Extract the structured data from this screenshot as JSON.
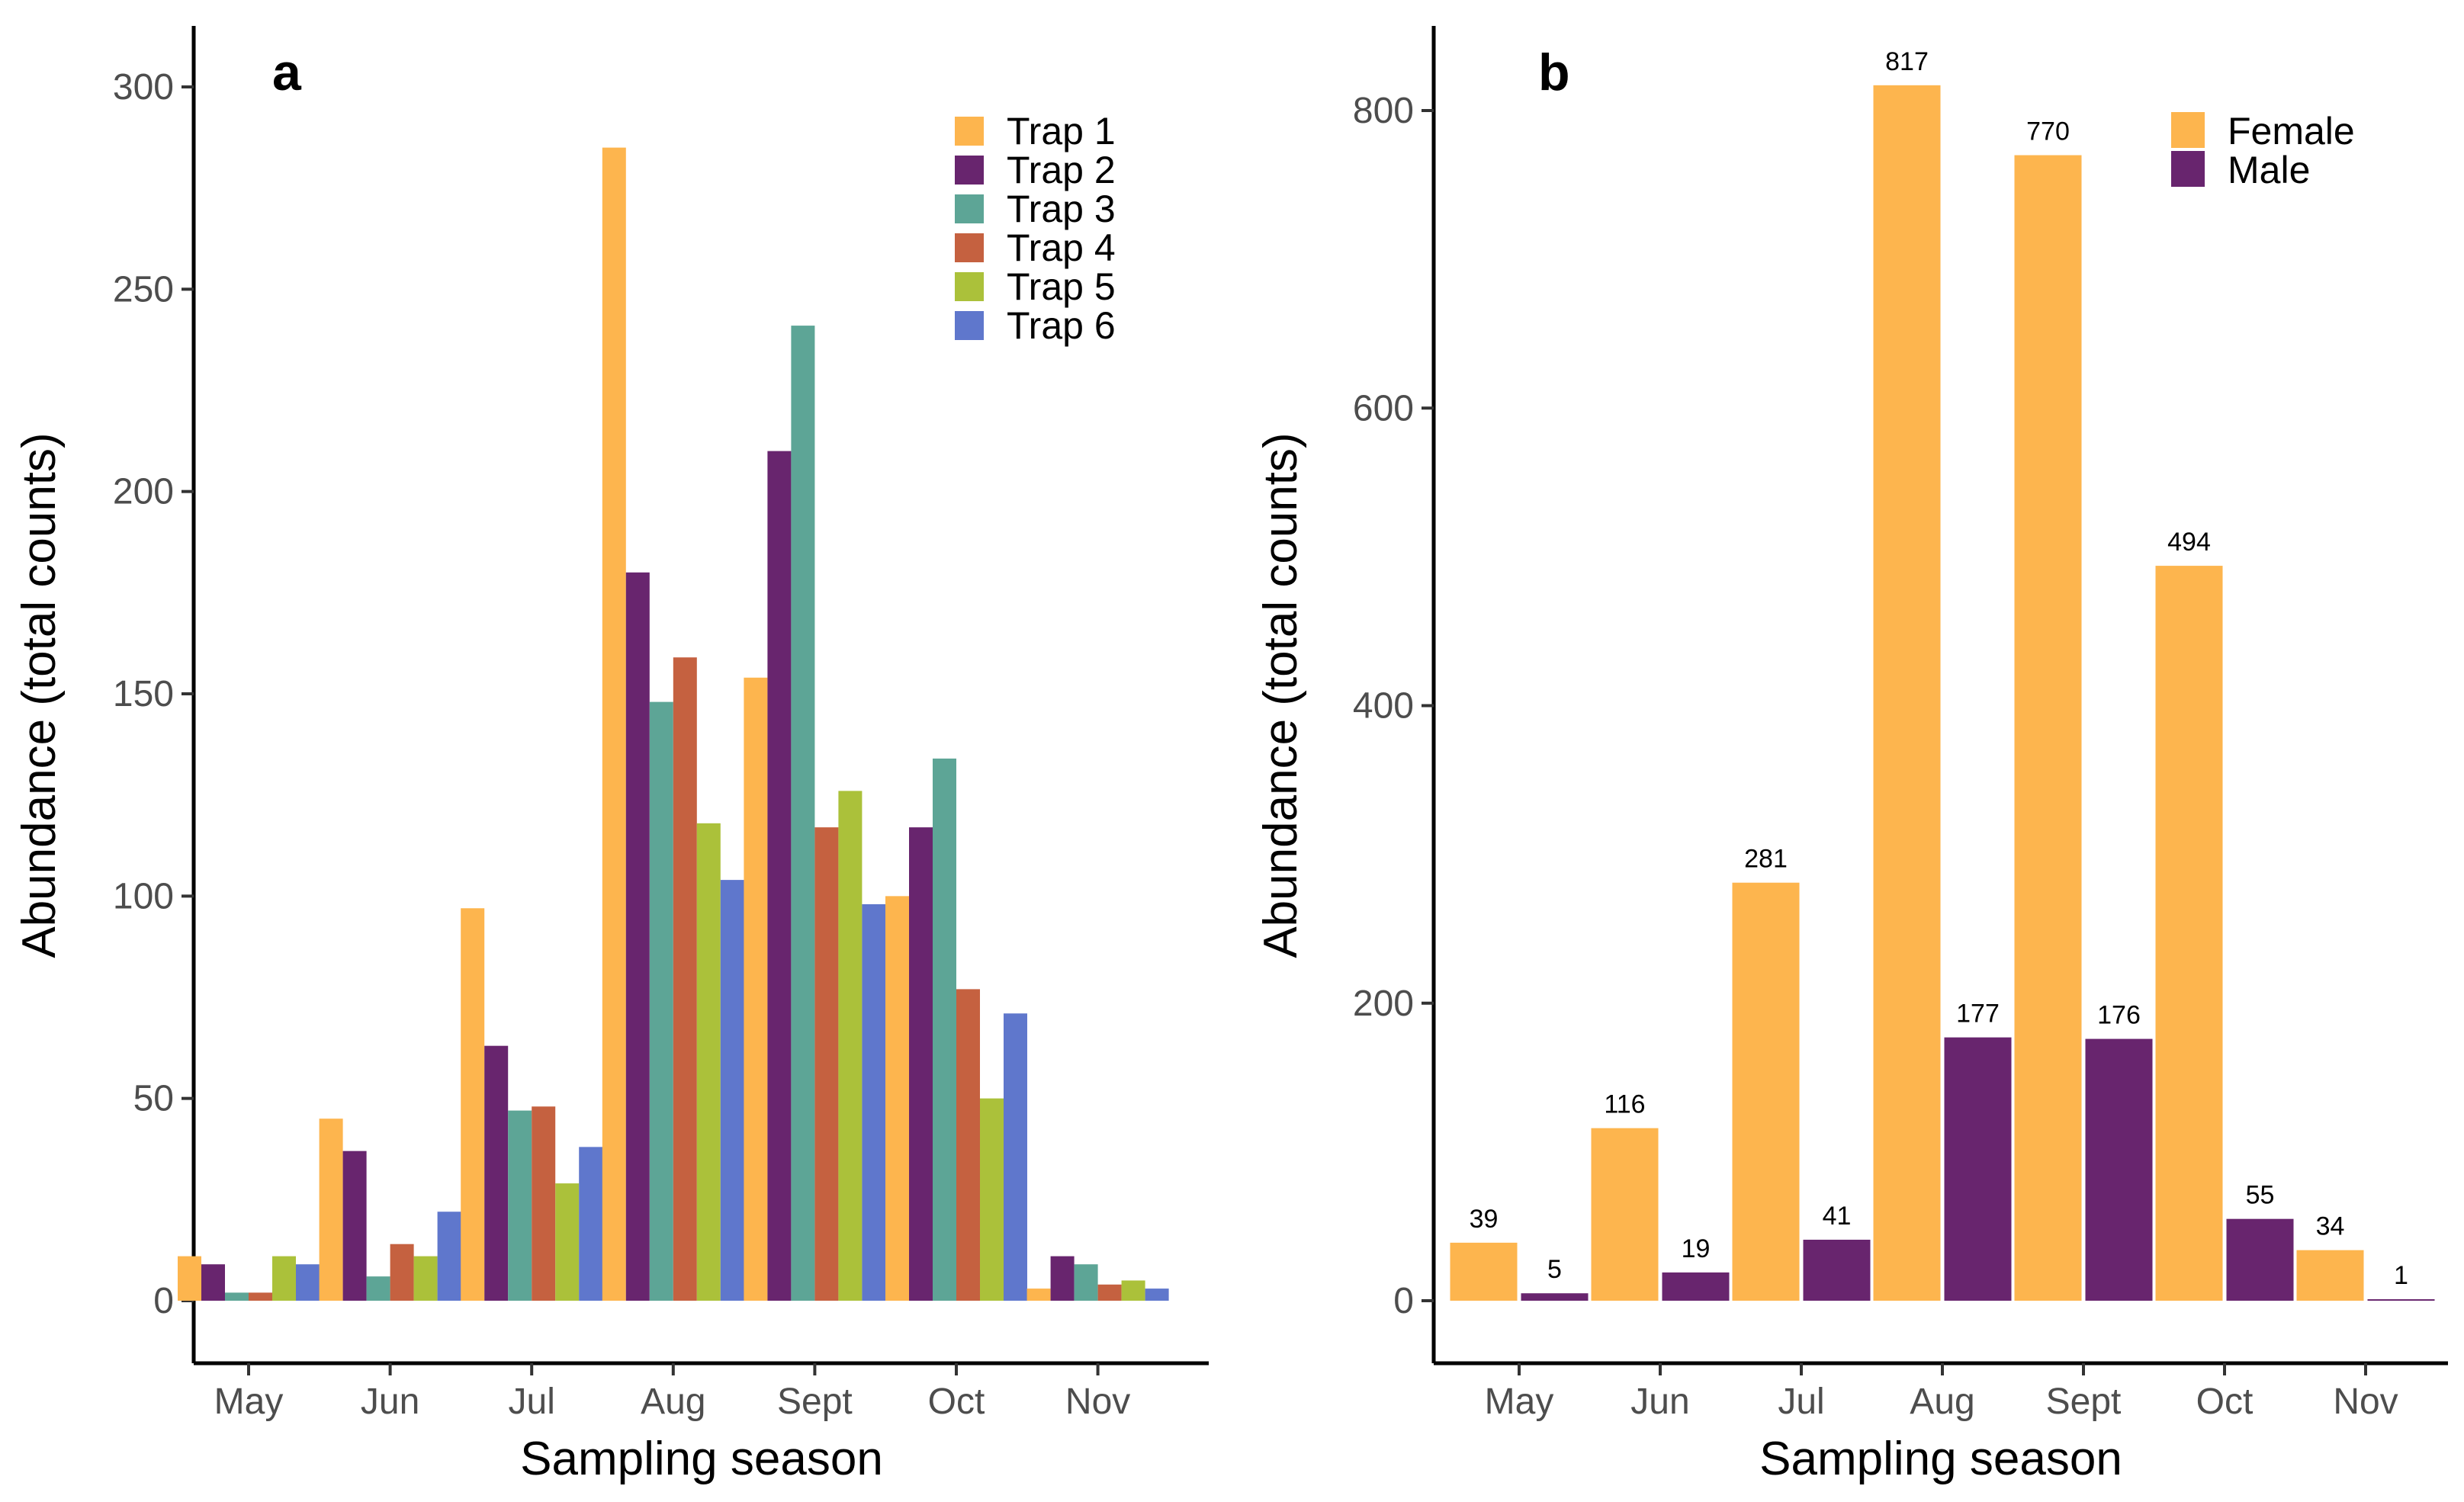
{
  "chart_data": [
    {
      "type": "bar",
      "panel": "a",
      "categories": [
        "May",
        "Jun",
        "Jul",
        "Aug",
        "Sept",
        "Oct",
        "Nov"
      ],
      "series": [
        {
          "name": "Trap 1",
          "color": "#FDB54E",
          "values": [
            11,
            45,
            97,
            285,
            154,
            100,
            3
          ]
        },
        {
          "name": "Trap 2",
          "color": "#68256E",
          "values": [
            9,
            37,
            63,
            180,
            210,
            117,
            11
          ]
        },
        {
          "name": "Trap 3",
          "color": "#5DA596",
          "values": [
            2,
            6,
            47,
            148,
            241,
            134,
            9
          ]
        },
        {
          "name": "Trap 4",
          "color": "#C56140",
          "values": [
            2,
            14,
            48,
            159,
            117,
            77,
            4
          ]
        },
        {
          "name": "Trap 5",
          "color": "#ABC13A",
          "values": [
            11,
            11,
            29,
            118,
            126,
            50,
            5
          ]
        },
        {
          "name": "Trap 6",
          "color": "#5F77CC",
          "values": [
            9,
            22,
            38,
            104,
            98,
            71,
            3
          ]
        }
      ],
      "title": "",
      "xlabel": "Sampling season",
      "ylabel": "Abundance (total counts)",
      "ylim": [
        0,
        310
      ],
      "yticks": [
        0,
        50,
        100,
        150,
        200,
        250,
        300
      ],
      "legend_position": "top-right",
      "grid": false
    },
    {
      "type": "bar",
      "panel": "b",
      "categories": [
        "May",
        "Jun",
        "Jul",
        "Aug",
        "Sept",
        "Oct",
        "Nov"
      ],
      "series": [
        {
          "name": "Female",
          "color": "#FDB54E",
          "values": [
            39,
            116,
            281,
            817,
            770,
            494,
            34
          ]
        },
        {
          "name": "Male",
          "color": "#68256E",
          "values": [
            5,
            19,
            41,
            177,
            176,
            55,
            1
          ]
        }
      ],
      "data_labels": true,
      "title": "",
      "xlabel": "Sampling season",
      "ylabel": "Abundance (total counts)",
      "ylim": [
        0,
        850
      ],
      "yticks": [
        0,
        200,
        400,
        600,
        800
      ],
      "legend_position": "top-right",
      "grid": false
    }
  ]
}
